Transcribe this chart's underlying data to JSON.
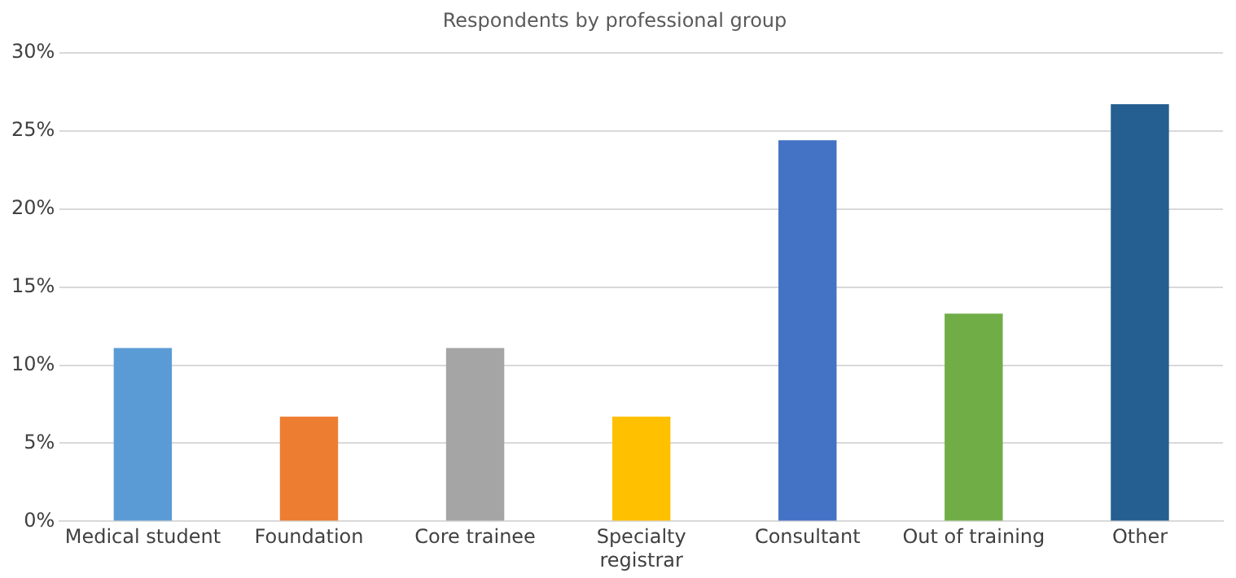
{
  "chart_data": {
    "type": "bar",
    "title": "Respondents by professional group",
    "categories": [
      "Medical student",
      "Foundation",
      "Core trainee",
      "Specialty registrar",
      "Consultant",
      "Out of training",
      "Other"
    ],
    "values": [
      11.1,
      6.7,
      11.1,
      6.7,
      24.4,
      13.3,
      26.7
    ],
    "colors": [
      "#5b9bd5",
      "#ed7d31",
      "#a5a5a5",
      "#ffc000",
      "#4472c4",
      "#70ad47",
      "#255e91"
    ],
    "ylim": [
      0,
      30
    ],
    "yticks": [
      {
        "value": 0,
        "label": "0%"
      },
      {
        "value": 5,
        "label": "5%"
      },
      {
        "value": 10,
        "label": "10%"
      },
      {
        "value": 15,
        "label": "15%"
      },
      {
        "value": 20,
        "label": "20%"
      },
      {
        "value": 25,
        "label": "25%"
      },
      {
        "value": 30,
        "label": "30%"
      }
    ],
    "grid": "y",
    "legend": false
  }
}
